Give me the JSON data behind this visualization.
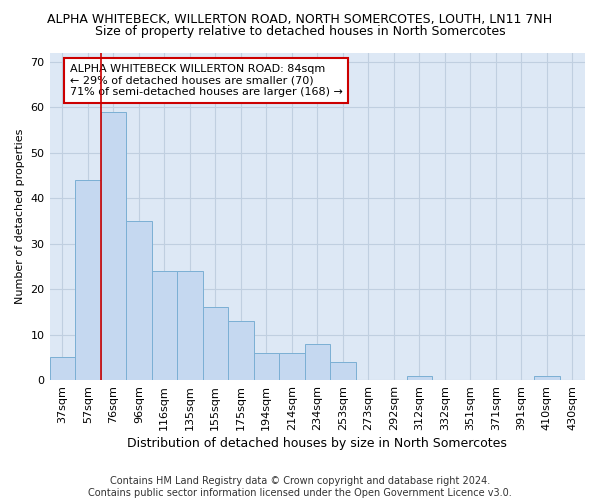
{
  "title": "ALPHA WHITEBECK, WILLERTON ROAD, NORTH SOMERCOTES, LOUTH, LN11 7NH",
  "subtitle": "Size of property relative to detached houses in North Somercotes",
  "xlabel": "Distribution of detached houses by size in North Somercotes",
  "ylabel": "Number of detached properties",
  "categories": [
    "37sqm",
    "57sqm",
    "76sqm",
    "96sqm",
    "116sqm",
    "135sqm",
    "155sqm",
    "175sqm",
    "194sqm",
    "214sqm",
    "234sqm",
    "253sqm",
    "273sqm",
    "292sqm",
    "312sqm",
    "332sqm",
    "351sqm",
    "371sqm",
    "391sqm",
    "410sqm",
    "430sqm"
  ],
  "values": [
    5,
    44,
    59,
    35,
    24,
    24,
    16,
    13,
    6,
    6,
    8,
    4,
    0,
    0,
    1,
    0,
    0,
    0,
    0,
    1,
    0
  ],
  "bar_color": "#c5d8f0",
  "bar_edge_color": "#7bafd4",
  "vline_color": "#cc0000",
  "vline_x_index": 2,
  "annotation_text": "ALPHA WHITEBECK WILLERTON ROAD: 84sqm\n← 29% of detached houses are smaller (70)\n71% of semi-detached houses are larger (168) →",
  "annotation_box_color": "#ffffff",
  "annotation_box_edge": "#cc0000",
  "ylim": [
    0,
    72
  ],
  "yticks": [
    0,
    10,
    20,
    30,
    40,
    50,
    60,
    70
  ],
  "footer": "Contains HM Land Registry data © Crown copyright and database right 2024.\nContains public sector information licensed under the Open Government Licence v3.0.",
  "bg_color": "#ffffff",
  "plot_bg_color": "#dde8f5",
  "grid_color": "#c0cfe0",
  "title_fontsize": 9,
  "subtitle_fontsize": 9,
  "xlabel_fontsize": 9,
  "ylabel_fontsize": 8,
  "tick_fontsize": 8,
  "footer_fontsize": 7,
  "annotation_fontsize": 8
}
